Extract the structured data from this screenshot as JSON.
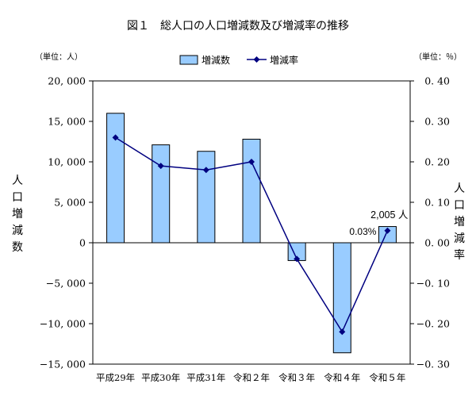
{
  "chart_data": {
    "type": "bar",
    "title": "図１　総人口の人口増減数及び増減率の推移",
    "categories": [
      "平成29年",
      "平成30年",
      "平成31年",
      "令和２年",
      "令和３年",
      "令和４年",
      "令和５年"
    ],
    "series": [
      {
        "name": "増減数",
        "type": "bar",
        "axis": "left",
        "values": [
          16000,
          12100,
          11300,
          12800,
          -2200,
          -13600,
          2005
        ]
      },
      {
        "name": "増減率",
        "type": "line",
        "axis": "right",
        "values": [
          0.26,
          0.19,
          0.18,
          0.2,
          -0.04,
          -0.22,
          0.03
        ]
      }
    ],
    "left_axis": {
      "unit_label": "（単位：人）",
      "label": "人口増減数",
      "ylim": [
        -15000,
        20000
      ],
      "ticks": [
        20000,
        15000,
        10000,
        5000,
        0,
        -5000,
        -10000,
        -15000
      ],
      "tick_labels": [
        "20, 000",
        "15, 000",
        "10, 000",
        "5, 000",
        "0",
        "−5, 000",
        "−10, 000",
        "−15, 000"
      ]
    },
    "right_axis": {
      "unit_label": "（単位：％）",
      "label": "人口増減率",
      "ylim": [
        -0.3,
        0.4
      ],
      "ticks": [
        0.4,
        0.3,
        0.2,
        0.1,
        0.0,
        -0.1,
        -0.2,
        -0.3
      ],
      "tick_labels": [
        "0. 40",
        "0. 30",
        "0. 20",
        "0. 10",
        "0. 00",
        "−0. 10",
        "−0. 20",
        "−0. 30"
      ]
    },
    "annotations": [
      {
        "text": "2,005 人",
        "category": "令和５年",
        "refers_to": "増減数"
      },
      {
        "text": "0.03%",
        "category": "令和５年",
        "refers_to": "増減率"
      }
    ],
    "legend": {
      "position": "top-center",
      "items": [
        "増減数",
        "増減率"
      ]
    },
    "grid": false,
    "colors": {
      "bar_fill": "#99ccff",
      "bar_stroke": "#000000",
      "line": "#000080",
      "axis": "#000000"
    }
  }
}
